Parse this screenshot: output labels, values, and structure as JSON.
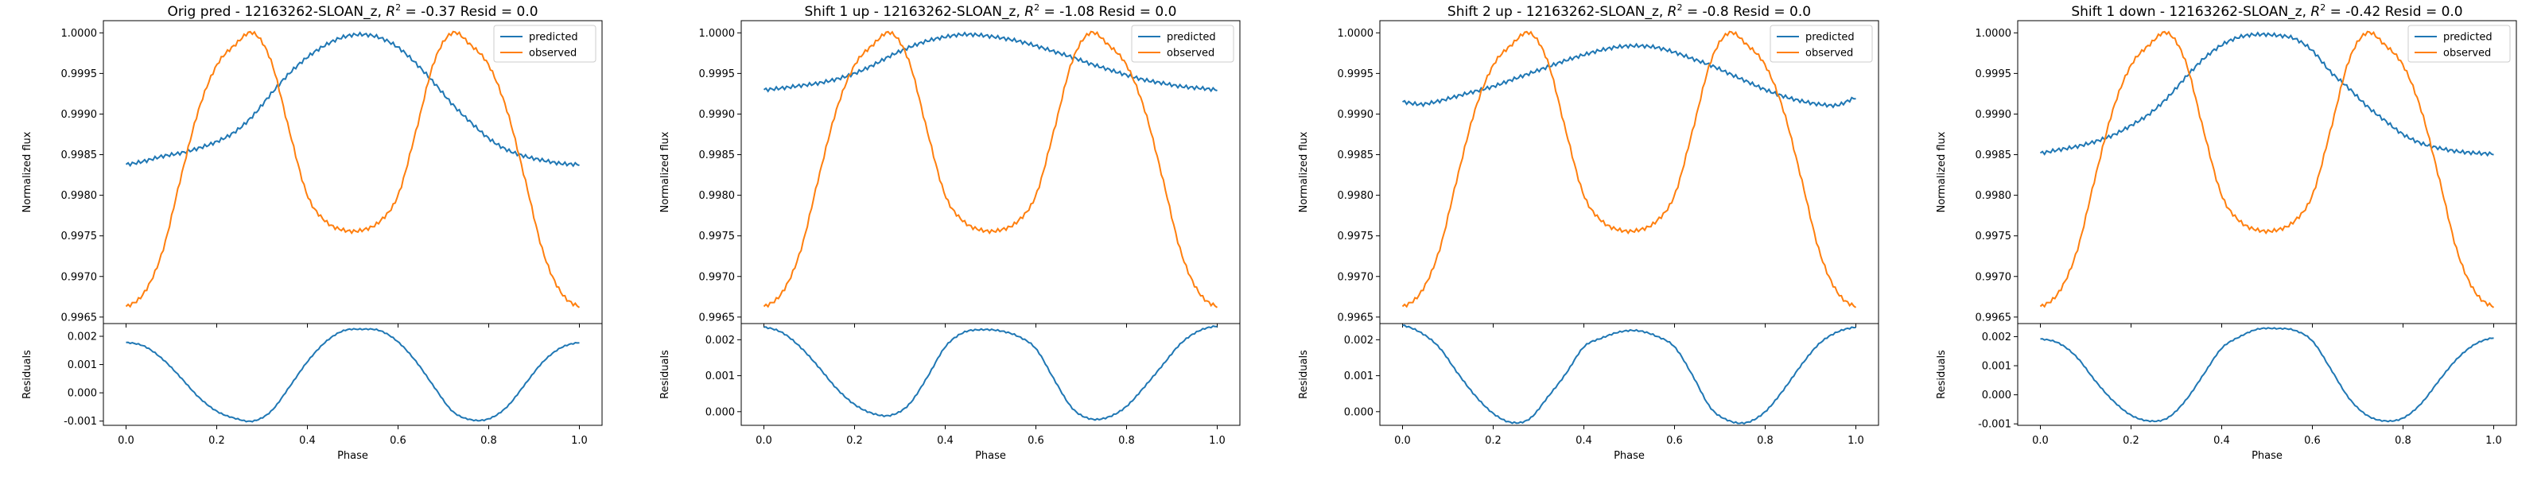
{
  "figure": {
    "background": "#ffffff"
  },
  "chart_data": [
    {
      "type": "line",
      "title": "Orig pred - 12163262-SLOAN_z, R² = -0.37 Resid = 0.0",
      "title_parts": {
        "prefix": "Orig pred - 12163262-SLOAN_z, ",
        "r2_symbol": "R",
        "r2_exponent": "2",
        "r2_rest": " = -0.37 Resid = 0.0"
      },
      "xlabel": "Phase",
      "ylabel": "Normalized flux",
      "residual_ylabel": "Residuals",
      "legend": {
        "placement": "top-right",
        "entries": [
          "predicted",
          "observed"
        ]
      },
      "colors": {
        "predicted": "#1f77b4",
        "observed": "#ff7f0e",
        "residuals": "#1f77b4"
      },
      "x_ticks": [
        "0.0",
        "0.2",
        "0.4",
        "0.6",
        "0.8",
        "1.0"
      ],
      "xlim": [
        -0.05,
        1.05
      ],
      "flux": {
        "ylim": [
          0.99642,
          1.00015
        ],
        "yticks": [
          "0.9965",
          "0.9970",
          "0.9975",
          "0.9980",
          "0.9985",
          "0.9990",
          "0.9995",
          "1.0000"
        ],
        "x": [
          0.0,
          0.04,
          0.08,
          0.12,
          0.16,
          0.2,
          0.24,
          0.28,
          0.32,
          0.36,
          0.4,
          0.44,
          0.48,
          0.52,
          0.56,
          0.6,
          0.64,
          0.68,
          0.72,
          0.76,
          0.8,
          0.84,
          0.88,
          0.92,
          0.96,
          1.0
        ],
        "series": [
          {
            "name": "predicted",
            "values": [
              0.99838,
              0.99842,
              0.99848,
              0.99852,
              0.99858,
              0.99866,
              0.99878,
              0.99898,
              0.99925,
              0.9995,
              0.9997,
              0.99985,
              0.99995,
              0.99998,
              0.99994,
              0.99982,
              0.99962,
              0.99938,
              0.99912,
              0.9989,
              0.9987,
              0.99856,
              0.99848,
              0.99843,
              0.99839,
              0.99838
            ]
          },
          {
            "name": "observed",
            "values": [
              0.99663,
              0.9968,
              0.9973,
              0.9982,
              0.99905,
              0.9996,
              0.99985,
              1.0,
              0.99965,
              0.9988,
              0.998,
              0.99768,
              0.99757,
              0.99757,
              0.99768,
              0.998,
              0.9988,
              0.99965,
              1.0,
              0.99985,
              0.9996,
              0.99905,
              0.9982,
              0.9973,
              0.9968,
              0.99663
            ]
          }
        ]
      },
      "residuals": {
        "ylim": [
          -0.00115,
          0.00245
        ],
        "yticks": [
          "-0.001",
          "0.000",
          "0.001",
          "0.002"
        ],
        "values": [
          0.00178,
          0.00165,
          0.0012,
          0.00055,
          -0.00015,
          -0.00065,
          -0.0009,
          -0.001,
          -0.00065,
          0.0002,
          0.0011,
          0.0018,
          0.0022,
          0.00225,
          0.0022,
          0.0018,
          0.0011,
          0.0002,
          -0.00065,
          -0.00095,
          -0.00092,
          -0.0005,
          0.0003,
          0.0011,
          0.0016,
          0.00178
        ]
      }
    },
    {
      "type": "line",
      "title": "Shift 1 up - 12163262-SLOAN_z, R² = -1.08 Resid = 0.0",
      "title_parts": {
        "prefix": "Shift 1 up - 12163262-SLOAN_z, ",
        "r2_symbol": "R",
        "r2_exponent": "2",
        "r2_rest": " = -1.08 Resid = 0.0"
      },
      "xlabel": "Phase",
      "ylabel": "Normalized flux",
      "residual_ylabel": "Residuals",
      "legend": {
        "placement": "top-right",
        "entries": [
          "predicted",
          "observed"
        ]
      },
      "colors": {
        "predicted": "#1f77b4",
        "observed": "#ff7f0e",
        "residuals": "#1f77b4"
      },
      "x_ticks": [
        "0.0",
        "0.2",
        "0.4",
        "0.6",
        "0.8",
        "1.0"
      ],
      "xlim": [
        -0.05,
        1.05
      ],
      "flux": {
        "ylim": [
          0.99642,
          1.00015
        ],
        "yticks": [
          "0.9965",
          "0.9970",
          "0.9975",
          "0.9980",
          "0.9985",
          "0.9990",
          "0.9995",
          "1.0000"
        ],
        "x": [
          0.0,
          0.04,
          0.08,
          0.12,
          0.16,
          0.2,
          0.24,
          0.28,
          0.32,
          0.36,
          0.4,
          0.44,
          0.48,
          0.52,
          0.56,
          0.6,
          0.64,
          0.68,
          0.72,
          0.76,
          0.8,
          0.84,
          0.88,
          0.92,
          0.96,
          1.0
        ],
        "series": [
          {
            "name": "predicted",
            "values": [
              0.9993,
              0.99932,
              0.99935,
              0.99938,
              0.99943,
              0.9995,
              0.9996,
              0.99972,
              0.99982,
              0.9999,
              0.99995,
              0.99998,
              0.99997,
              0.99994,
              0.9999,
              0.99984,
              0.99977,
              0.9997,
              0.99962,
              0.99955,
              0.99948,
              0.99942,
              0.99938,
              0.99934,
              0.99932,
              0.9993
            ]
          },
          {
            "name": "observed",
            "values": [
              0.99663,
              0.9968,
              0.9973,
              0.9982,
              0.99905,
              0.9996,
              0.99985,
              1.0,
              0.99965,
              0.9988,
              0.998,
              0.99768,
              0.99757,
              0.99757,
              0.99768,
              0.998,
              0.9988,
              0.99965,
              1.0,
              0.99985,
              0.9996,
              0.99905,
              0.9982,
              0.9973,
              0.9968,
              0.99663
            ]
          }
        ]
      },
      "residuals": {
        "ylim": [
          -0.00038,
          0.00245
        ],
        "yticks": [
          "0.000",
          "0.001",
          "0.002"
        ],
        "values": [
          0.00235,
          0.0022,
          0.0018,
          0.00125,
          0.00065,
          0.0002,
          -5e-05,
          -0.0001,
          0.0002,
          0.00095,
          0.0018,
          0.0022,
          0.00228,
          0.00225,
          0.0021,
          0.00175,
          0.0009,
          0.0001,
          -0.0002,
          -0.00015,
          0.00015,
          0.0007,
          0.0013,
          0.0019,
          0.00225,
          0.00238
        ]
      }
    },
    {
      "type": "line",
      "title": "Shift 2 up - 12163262-SLOAN_z, R² = -0.8 Resid = 0.0",
      "title_parts": {
        "prefix": "Shift 2 up - 12163262-SLOAN_z, ",
        "r2_symbol": "R",
        "r2_exponent": "2",
        "r2_rest": " = -0.8 Resid = 0.0"
      },
      "xlabel": "Phase",
      "ylabel": "Normalized flux",
      "residual_ylabel": "Residuals",
      "legend": {
        "placement": "top-right",
        "entries": [
          "predicted",
          "observed"
        ]
      },
      "colors": {
        "predicted": "#1f77b4",
        "observed": "#ff7f0e",
        "residuals": "#1f77b4"
      },
      "x_ticks": [
        "0.0",
        "0.2",
        "0.4",
        "0.6",
        "0.8",
        "1.0"
      ],
      "xlim": [
        -0.05,
        1.05
      ],
      "flux": {
        "ylim": [
          0.99642,
          1.00015
        ],
        "yticks": [
          "0.9965",
          "0.9970",
          "0.9975",
          "0.9980",
          "0.9985",
          "0.9990",
          "0.9995",
          "1.0000"
        ],
        "x": [
          0.0,
          0.04,
          0.08,
          0.12,
          0.16,
          0.2,
          0.24,
          0.28,
          0.32,
          0.36,
          0.4,
          0.44,
          0.48,
          0.52,
          0.56,
          0.6,
          0.64,
          0.68,
          0.72,
          0.76,
          0.8,
          0.84,
          0.88,
          0.92,
          0.96,
          1.0
        ],
        "series": [
          {
            "name": "predicted",
            "values": [
              0.99915,
              0.99912,
              0.99916,
              0.99922,
              0.99928,
              0.99934,
              0.99942,
              0.9995,
              0.99958,
              0.99966,
              0.99973,
              0.99979,
              0.99983,
              0.99984,
              0.99982,
              0.99976,
              0.99968,
              0.9996,
              0.9995,
              0.9994,
              0.9993,
              0.99922,
              0.99916,
              0.99912,
              0.99911,
              0.9992
            ]
          },
          {
            "name": "observed",
            "values": [
              0.99663,
              0.9968,
              0.9973,
              0.9982,
              0.99905,
              0.9996,
              0.99985,
              1.0,
              0.99965,
              0.9988,
              0.998,
              0.99768,
              0.99757,
              0.99757,
              0.99768,
              0.998,
              0.9988,
              0.99965,
              1.0,
              0.99985,
              0.9996,
              0.99905,
              0.9982,
              0.9973,
              0.9968,
              0.99663
            ]
          }
        ]
      },
      "residuals": {
        "ylim": [
          -0.00038,
          0.00245
        ],
        "yticks": [
          "0.000",
          "0.001",
          "0.002"
        ],
        "values": [
          0.0024,
          0.0022,
          0.0018,
          0.0011,
          0.00045,
          -5e-05,
          -0.0003,
          -0.0002,
          0.0004,
          0.00105,
          0.0018,
          0.00205,
          0.00222,
          0.00225,
          0.0021,
          0.0018,
          0.001,
          0.0001,
          -0.00025,
          -0.0003,
          0.0,
          0.0006,
          0.0013,
          0.0019,
          0.00222,
          0.00235
        ]
      }
    },
    {
      "type": "line",
      "title": "Shift 1 down - 12163262-SLOAN_z, R² = -0.42 Resid = 0.0",
      "title_parts": {
        "prefix": "Shift 1 down - 12163262-SLOAN_z, ",
        "r2_symbol": "R",
        "r2_exponent": "2",
        "r2_rest": " = -0.42 Resid = 0.0"
      },
      "xlabel": "Phase",
      "ylabel": "Normalized flux",
      "residual_ylabel": "Residuals",
      "legend": {
        "placement": "top-right",
        "entries": [
          "predicted",
          "observed"
        ]
      },
      "colors": {
        "predicted": "#1f77b4",
        "observed": "#ff7f0e",
        "residuals": "#1f77b4"
      },
      "x_ticks": [
        "0.0",
        "0.2",
        "0.4",
        "0.6",
        "0.8",
        "1.0"
      ],
      "xlim": [
        -0.05,
        1.05
      ],
      "flux": {
        "ylim": [
          0.99642,
          1.00015
        ],
        "yticks": [
          "0.9965",
          "0.9970",
          "0.9975",
          "0.9980",
          "0.9985",
          "0.9990",
          "0.9995",
          "1.0000"
        ],
        "x": [
          0.0,
          0.04,
          0.08,
          0.12,
          0.16,
          0.2,
          0.24,
          0.28,
          0.32,
          0.36,
          0.4,
          0.44,
          0.48,
          0.52,
          0.56,
          0.6,
          0.64,
          0.68,
          0.72,
          0.76,
          0.8,
          0.84,
          0.88,
          0.92,
          0.96,
          1.0
        ],
        "series": [
          {
            "name": "predicted",
            "values": [
              0.99852,
              0.99856,
              0.9986,
              0.99866,
              0.99874,
              0.99886,
              0.999,
              0.9992,
              0.99945,
              0.99968,
              0.99985,
              0.99995,
              0.99998,
              0.99997,
              0.99993,
              0.99978,
              0.99952,
              0.99932,
              0.9991,
              0.99892,
              0.99875,
              0.99864,
              0.99858,
              0.99854,
              0.99852,
              0.99851
            ]
          },
          {
            "name": "observed",
            "values": [
              0.99663,
              0.9968,
              0.9973,
              0.9982,
              0.99905,
              0.9996,
              0.99985,
              1.0,
              0.99965,
              0.9988,
              0.998,
              0.99768,
              0.99757,
              0.99757,
              0.99768,
              0.998,
              0.9988,
              0.99965,
              1.0,
              0.99985,
              0.9996,
              0.99905,
              0.9982,
              0.9973,
              0.9968,
              0.99663
            ]
          }
        ]
      },
      "residuals": {
        "ylim": [
          -0.00105,
          0.00245
        ],
        "yticks": [
          "-0.001",
          "0.000",
          "0.001",
          "0.002"
        ],
        "values": [
          0.00192,
          0.00178,
          0.0013,
          0.0005,
          -0.0002,
          -0.0007,
          -0.0009,
          -0.0008,
          -0.0002,
          0.0007,
          0.0016,
          0.002,
          0.00226,
          0.00228,
          0.00222,
          0.00185,
          0.0009,
          -0.0001,
          -0.0007,
          -0.0009,
          -0.0008,
          -0.0003,
          0.0005,
          0.00125,
          0.00175,
          0.00196
        ]
      }
    }
  ]
}
